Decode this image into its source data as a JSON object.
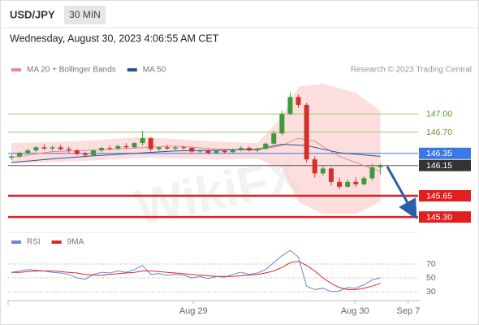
{
  "header": {
    "symbol": "USD/JPY",
    "interval": "30 MIN",
    "datetime": "Wednesday, August 30, 2023 4:06:55 AM CET",
    "credit": "Research © 2023 Trading Central",
    "watermark": "WikiFX"
  },
  "chart_data": [
    {
      "type": "candlestick",
      "xlim": [
        -0.4,
        49.6
      ],
      "xticks": [
        {
          "value": 22.2,
          "label": "Aug 29"
        },
        {
          "value": 41.9,
          "label": "Aug 30"
        },
        {
          "value": 48.4,
          "label": "Sep 7"
        }
      ],
      "ylim": [
        145.06,
        147.54
      ],
      "up_color": "#3f9a3c",
      "down_color": "#d3302b",
      "ohlc": [
        [
          146.28,
          146.33,
          146.24,
          146.3
        ],
        [
          146.3,
          146.38,
          146.28,
          146.36
        ],
        [
          146.36,
          146.42,
          146.33,
          146.4
        ],
        [
          146.4,
          146.47,
          146.37,
          146.45
        ],
        [
          146.45,
          146.5,
          146.41,
          146.43
        ],
        [
          146.43,
          146.48,
          146.39,
          146.45
        ],
        [
          146.45,
          146.49,
          146.4,
          146.42
        ],
        [
          146.42,
          146.46,
          146.36,
          146.4
        ],
        [
          146.4,
          146.42,
          146.32,
          146.34
        ],
        [
          146.34,
          146.38,
          146.28,
          146.32
        ],
        [
          146.32,
          146.42,
          146.3,
          146.4
        ],
        [
          146.4,
          146.46,
          146.37,
          146.44
        ],
        [
          146.44,
          146.48,
          146.4,
          146.43
        ],
        [
          146.43,
          146.49,
          146.4,
          146.47
        ],
        [
          146.47,
          146.52,
          146.42,
          146.45
        ],
        [
          146.45,
          146.54,
          146.43,
          146.52
        ],
        [
          146.52,
          146.72,
          146.48,
          146.6
        ],
        [
          146.6,
          146.62,
          146.38,
          146.42
        ],
        [
          146.42,
          146.47,
          146.39,
          146.45
        ],
        [
          146.45,
          146.49,
          146.41,
          146.43
        ],
        [
          146.43,
          146.47,
          146.4,
          146.45
        ],
        [
          146.45,
          146.48,
          146.41,
          146.44
        ],
        [
          146.44,
          146.46,
          146.36,
          146.38
        ],
        [
          146.38,
          146.42,
          146.34,
          146.4
        ],
        [
          146.4,
          146.42,
          146.33,
          146.36
        ],
        [
          146.36,
          146.41,
          146.34,
          146.39
        ],
        [
          146.39,
          146.42,
          146.35,
          146.37
        ],
        [
          146.37,
          146.43,
          146.35,
          146.41
        ],
        [
          146.41,
          146.47,
          146.38,
          146.44
        ],
        [
          146.44,
          146.46,
          146.38,
          146.4
        ],
        [
          146.4,
          146.45,
          146.37,
          146.43
        ],
        [
          146.43,
          146.53,
          146.41,
          146.51
        ],
        [
          146.51,
          146.72,
          146.49,
          146.68
        ],
        [
          146.68,
          147.05,
          146.65,
          147.0
        ],
        [
          147.0,
          147.35,
          146.98,
          147.28
        ],
        [
          147.28,
          147.32,
          147.1,
          147.15
        ],
        [
          147.15,
          147.18,
          146.2,
          146.25
        ],
        [
          146.25,
          146.3,
          145.95,
          146.02
        ],
        [
          146.02,
          146.15,
          145.98,
          146.1
        ],
        [
          146.1,
          146.12,
          145.82,
          145.88
        ],
        [
          145.88,
          145.95,
          145.76,
          145.8
        ],
        [
          145.8,
          145.92,
          145.78,
          145.88
        ],
        [
          145.88,
          145.95,
          145.8,
          145.84
        ],
        [
          145.84,
          145.98,
          145.82,
          145.94
        ],
        [
          145.94,
          146.18,
          145.9,
          146.12
        ],
        [
          146.12,
          146.18,
          146.0,
          146.15
        ]
      ],
      "band": {
        "color": "#fbd3d3",
        "x": [
          0,
          8,
          16,
          24,
          30,
          33,
          35,
          38,
          42,
          45
        ],
        "upper": [
          146.52,
          146.55,
          146.62,
          146.55,
          146.52,
          146.95,
          147.45,
          147.5,
          147.35,
          147.05
        ],
        "lower": [
          146.18,
          146.22,
          146.28,
          146.25,
          146.26,
          146.1,
          145.55,
          145.35,
          145.35,
          145.55
        ]
      },
      "series": [
        {
          "name": "MA 20 + Bollinger Bands",
          "color": "#ef8a8a",
          "x": [
            0,
            5,
            10,
            15,
            20,
            25,
            30,
            33,
            35,
            37,
            40,
            45
          ],
          "values": [
            146.28,
            146.38,
            146.4,
            146.44,
            146.47,
            146.42,
            146.4,
            146.48,
            146.6,
            146.55,
            146.3,
            146.05
          ]
        },
        {
          "name": "MA 50",
          "color": "#2d5290",
          "x": [
            0,
            5,
            10,
            15,
            20,
            25,
            30,
            33,
            36,
            40,
            45
          ],
          "values": [
            146.2,
            146.26,
            146.31,
            146.35,
            146.39,
            146.4,
            146.42,
            146.5,
            146.48,
            146.36,
            146.3
          ]
        }
      ],
      "levels": [
        {
          "value": 147.0,
          "label": "147.00",
          "color": "#9acb6e",
          "label_color": "#5a9a1a"
        },
        {
          "value": 146.7,
          "label": "146.70",
          "color": "#9acb6e",
          "label_color": "#5a9a1a"
        },
        {
          "value": 146.35,
          "label": "146.35",
          "color": "#3b78e7",
          "label_color": "#ffffff",
          "label_background": "#3b78e7"
        },
        {
          "value": 146.15,
          "label": "146.15",
          "color": "#555555",
          "label_color": "#ffffff",
          "label_background": "#333333"
        },
        {
          "value": 145.65,
          "label": "145.65",
          "color": "#e02020",
          "label_color": "#ffffff",
          "label_background": "#e02020"
        },
        {
          "value": 145.3,
          "label": "145.30",
          "color": "#e02020",
          "label_color": "#ffffff",
          "label_background": "#e02020"
        }
      ]
    },
    {
      "type": "line",
      "ylim": [
        19.4,
        93.5
      ],
      "yticks": [
        30,
        50,
        70
      ],
      "series": [
        {
          "name": "RSI",
          "color": "#6b84d8",
          "values": [
            58,
            60,
            62,
            61,
            60,
            58,
            57,
            55,
            50,
            48,
            55,
            58,
            57,
            60,
            58,
            62,
            68,
            55,
            56,
            54,
            55,
            54,
            50,
            52,
            49,
            52,
            51,
            55,
            58,
            55,
            57,
            62,
            72,
            82,
            90,
            80,
            38,
            33,
            35,
            30,
            31,
            36,
            35,
            40,
            47,
            50
          ]
        },
        {
          "name": "9MA",
          "color": "#d8262b",
          "values": [
            58,
            58,
            59,
            60,
            60,
            60,
            59,
            58,
            57,
            55,
            54,
            54,
            55,
            56,
            57,
            58,
            60,
            60,
            59,
            58,
            57,
            56,
            55,
            54,
            53,
            52,
            52,
            52,
            53,
            54,
            55,
            57,
            60,
            65,
            72,
            74,
            68,
            60,
            50,
            42,
            36,
            33,
            33,
            35,
            38,
            42
          ]
        }
      ]
    }
  ]
}
